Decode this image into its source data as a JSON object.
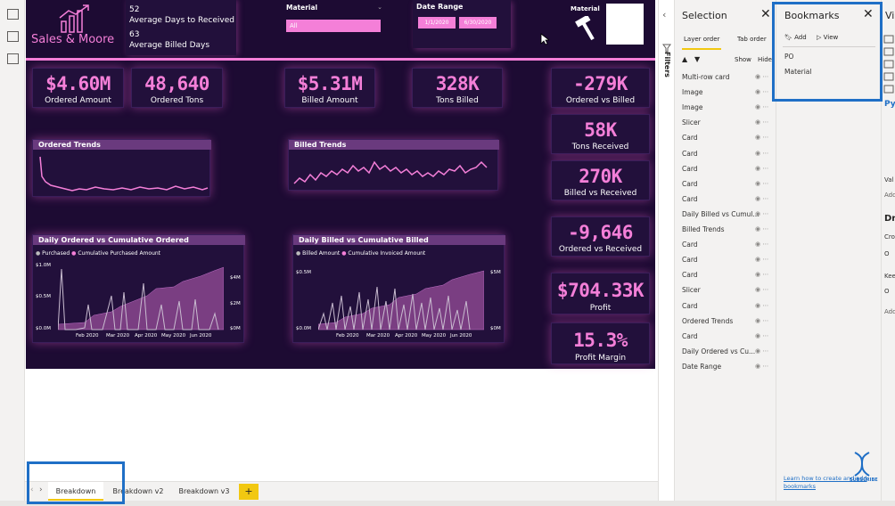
{
  "brand": {
    "name": "Sales & Moore"
  },
  "header_stats": [
    {
      "value": "52",
      "label": "Average Days to Received"
    },
    {
      "value": "63",
      "label": "Average Billed Days"
    }
  ],
  "slicers": {
    "material": {
      "label": "Material",
      "selected": "All"
    },
    "date_range": {
      "label": "Date Range",
      "start": "1/1/2020",
      "end": "6/30/2020"
    },
    "material_image_label": "Material"
  },
  "kpis": {
    "ordered_amount": {
      "value": "$4.60M",
      "label": "Ordered Amount"
    },
    "ordered_tons": {
      "value": "48,640",
      "label": "Ordered Tons"
    },
    "billed_amount": {
      "value": "$5.31M",
      "label": "Billed Amount"
    },
    "tons_billed": {
      "value": "328K",
      "label": "Tons Billed"
    },
    "ordered_vs_billed": {
      "value": "-279K",
      "label": "Ordered vs Billed"
    },
    "tons_received": {
      "value": "58K",
      "label": "Tons Received"
    },
    "billed_vs_received": {
      "value": "270K",
      "label": "Billed vs Received"
    },
    "ordered_vs_received": {
      "value": "-9,646",
      "label": "Ordered vs Received"
    },
    "profit": {
      "value": "$704.33K",
      "label": "Profit"
    },
    "profit_margin": {
      "value": "15.3%",
      "label": "Profit Margin"
    }
  },
  "charts": {
    "ordered_trends": {
      "title": "Ordered Trends"
    },
    "billed_trends": {
      "title": "Billed Trends"
    },
    "daily_ordered": {
      "title": "Daily Ordered vs Cumulative Ordered",
      "legend": [
        "Purchased",
        "Cumulative Purchased Amount"
      ],
      "y_left": [
        "$1.0M",
        "$0.5M",
        "$0.0M"
      ],
      "y_right": [
        "$4M",
        "$2M",
        "$0M"
      ],
      "x_ticks": [
        "Feb 2020",
        "Mar 2020",
        "Apr 2020",
        "May 2020",
        "Jun 2020"
      ]
    },
    "daily_billed": {
      "title": "Daily Billed vs Cumulative Billed",
      "legend": [
        "Billed Amount",
        "Cumulative Invoiced Amount"
      ],
      "y_left": [
        "$0.5M",
        "$0.0M"
      ],
      "y_right": [
        "$5M",
        "$0M"
      ],
      "x_ticks": [
        "Feb 2020",
        "Mar 2020",
        "Apr 2020",
        "May 2020",
        "Jun 2020"
      ]
    }
  },
  "filters_label": "Filters",
  "selection": {
    "title": "Selection",
    "tabs": [
      "Layer order",
      "Tab order"
    ],
    "show_label": "Show",
    "hide_label": "Hide",
    "items": [
      "Multi-row card",
      "Image",
      "Image",
      "Slicer",
      "Card",
      "Card",
      "Card",
      "Card",
      "Card",
      "Daily Billed vs Cumul...",
      "Billed Trends",
      "Card",
      "Card",
      "Card",
      "Slicer",
      "Card",
      "Ordered Trends",
      "Card",
      "Daily Ordered vs Cu...",
      "Date Range"
    ]
  },
  "bookmarks": {
    "title": "Bookmarks",
    "add_label": "Add",
    "view_label": "View",
    "items": [
      "PO",
      "Material"
    ],
    "learn_link": "Learn how to create and add bookmarks",
    "subscribe_label": "SUBSCRIBE"
  },
  "viz_pane": {
    "title": "Vi",
    "fragments": [
      "Py",
      "Val",
      "Add",
      "Dr",
      "Cro",
      "O",
      "Kee",
      "O",
      "Add"
    ]
  },
  "pages": [
    "Breakdown",
    "Breakdown v2",
    "Breakdown v3"
  ],
  "add_page_label": "+",
  "colors": {
    "accent": "#f47fd8",
    "background": "#1d0b33",
    "highlight": "#1f6fc6"
  }
}
